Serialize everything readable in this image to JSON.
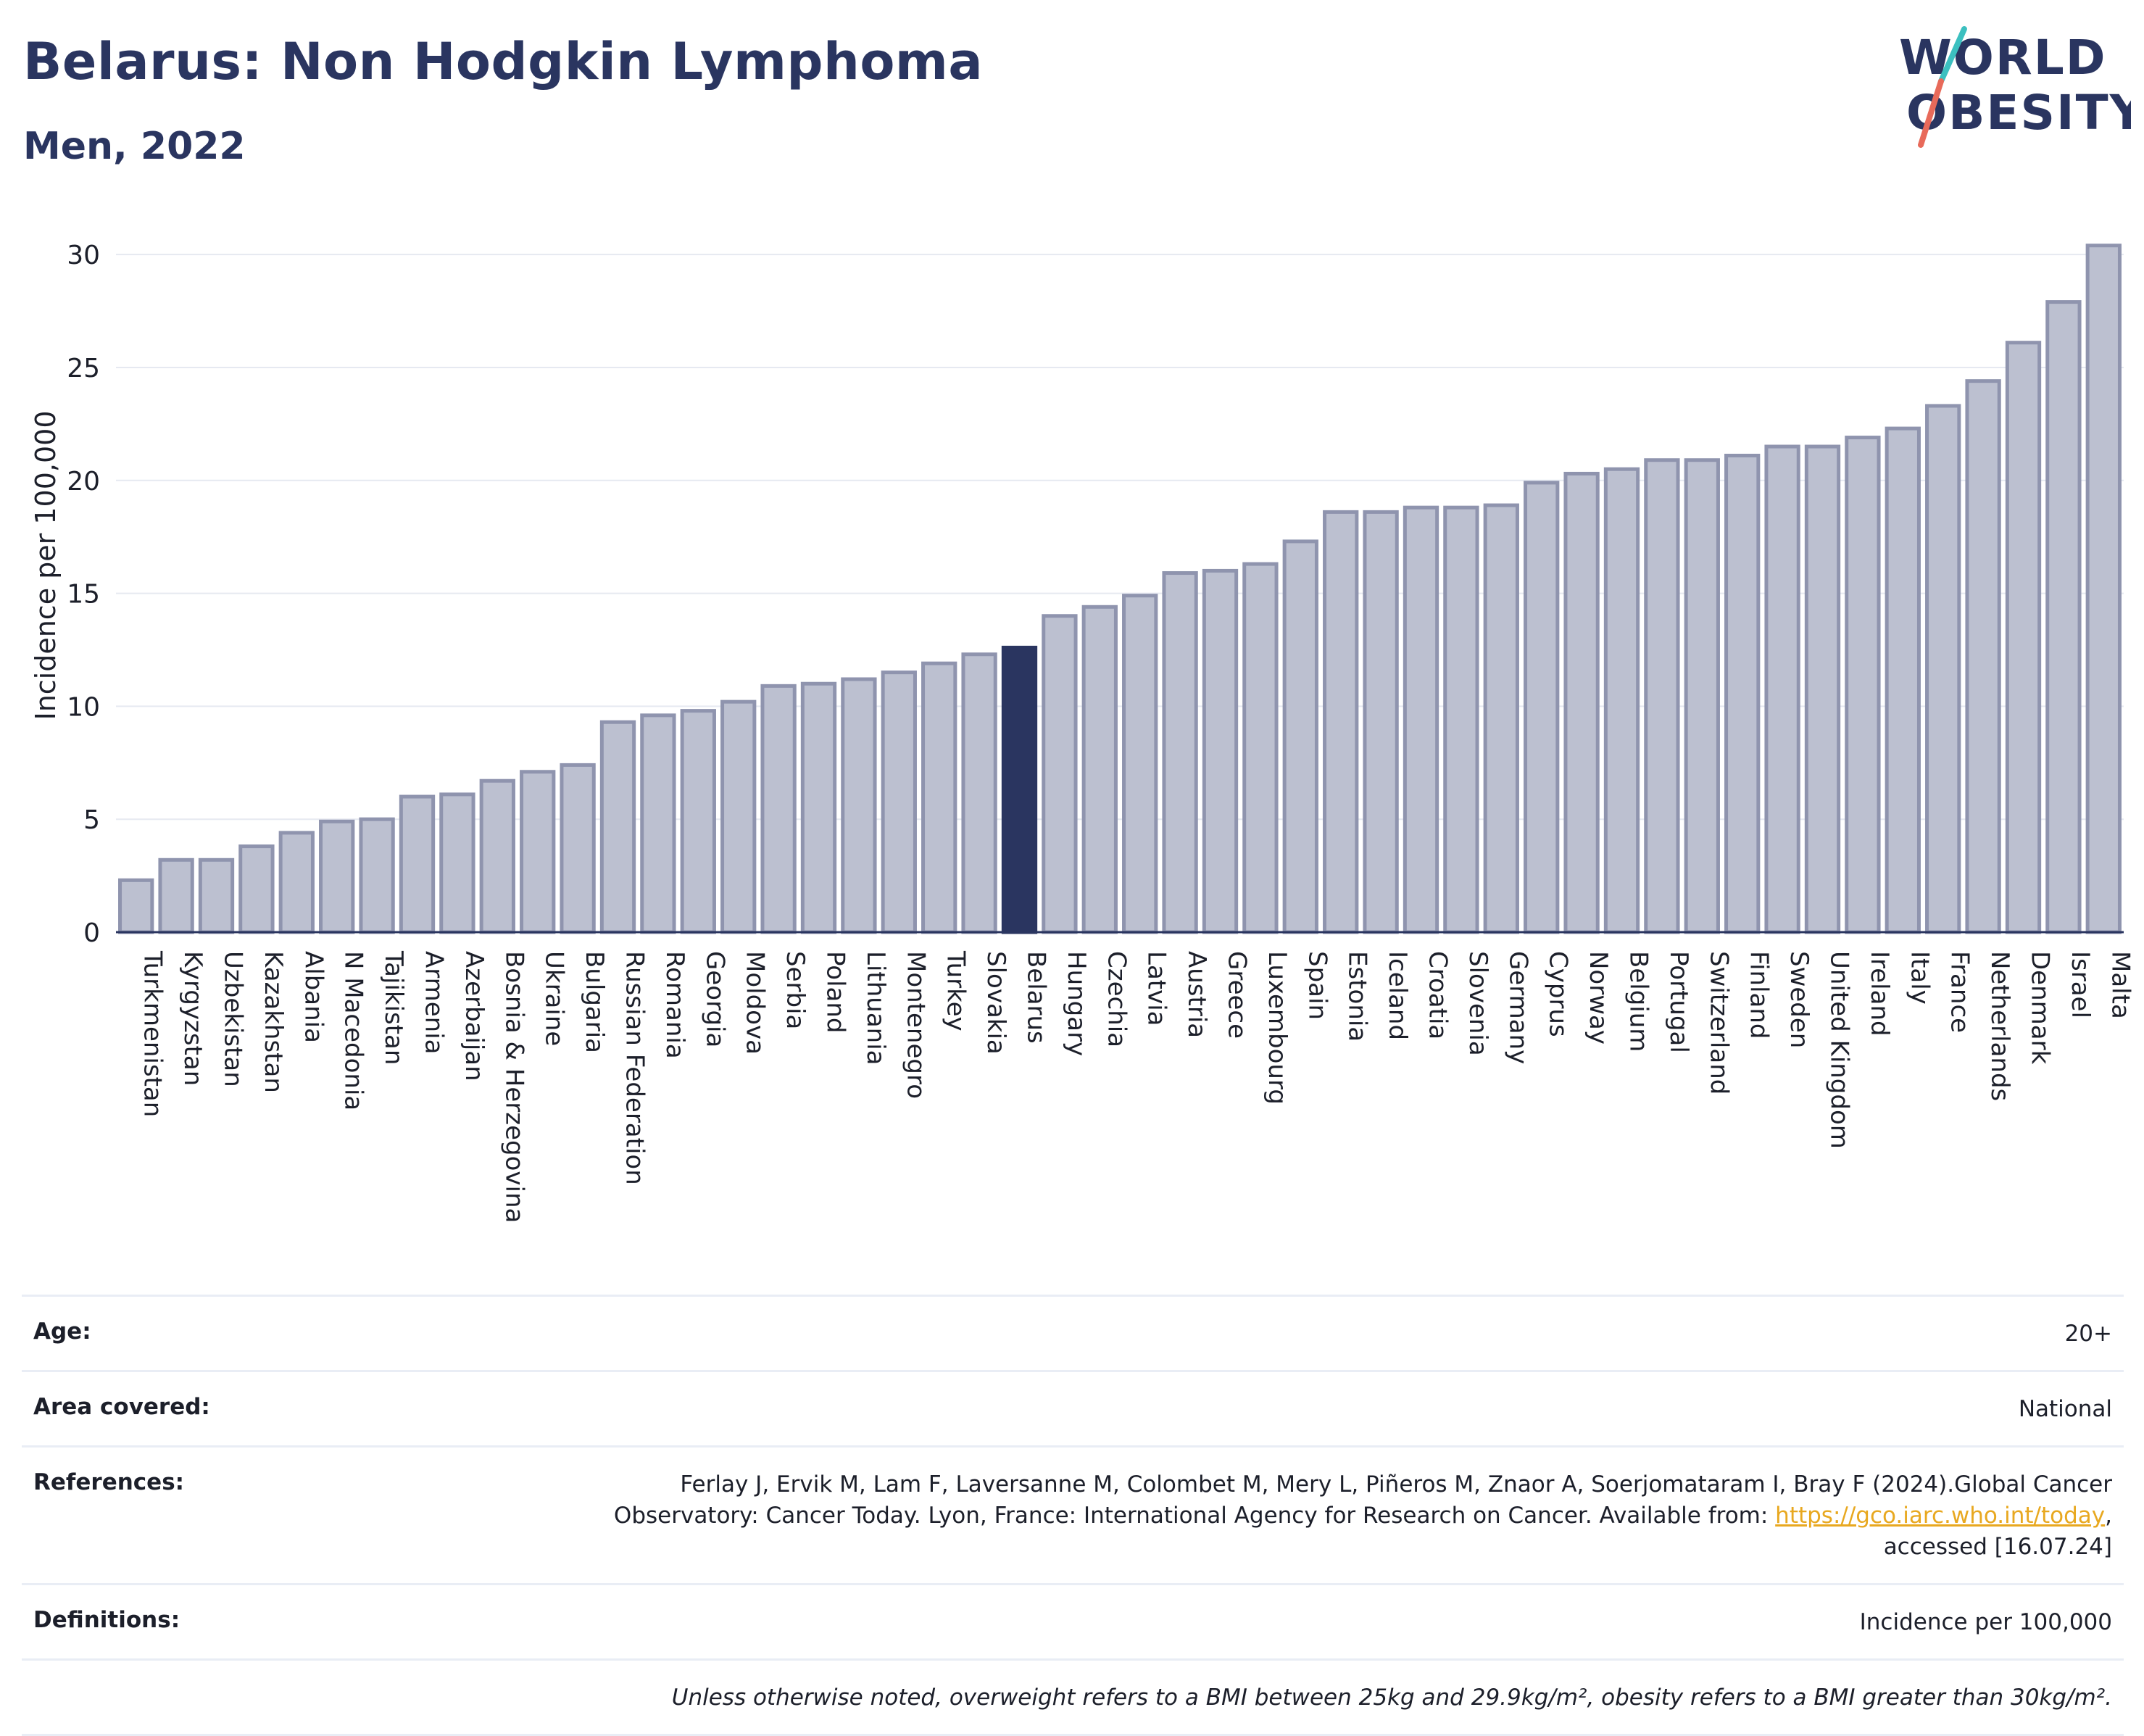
{
  "header": {
    "title": "Belarus: Non Hodgkin Lymphoma",
    "subtitle": "Men, 2022"
  },
  "logo": {
    "line1": "WORLD",
    "line2": "OBESITY"
  },
  "colors": {
    "bar": "#bcc0d0",
    "bar_outline": "#8f94ae",
    "highlight": "#2a3560",
    "grid": "#e6e9f1",
    "link": "#e8a820"
  },
  "chart_data": {
    "type": "bar",
    "ylabel": "Incidence per 100,000",
    "xlabel": "",
    "ylim": [
      0,
      31
    ],
    "yticks": [
      0,
      5,
      10,
      15,
      20,
      25,
      30
    ],
    "grid": true,
    "highlight": "Belarus",
    "categories": [
      "Turkmenistan",
      "Kyrgyzstan",
      "Uzbekistan",
      "Kazakhstan",
      "Albania",
      "N Macedonia",
      "Tajikistan",
      "Armenia",
      "Azerbaijan",
      "Bosnia & Herzegovina",
      "Ukraine",
      "Bulgaria",
      "Russian Federation",
      "Romania",
      "Georgia",
      "Moldova",
      "Serbia",
      "Poland",
      "Lithuania",
      "Montenegro",
      "Turkey",
      "Slovakia",
      "Belarus",
      "Hungary",
      "Czechia",
      "Latvia",
      "Austria",
      "Greece",
      "Luxembourg",
      "Spain",
      "Estonia",
      "Iceland",
      "Croatia",
      "Slovenia",
      "Germany",
      "Cyprus",
      "Norway",
      "Belgium",
      "Portugal",
      "Switzerland",
      "Finland",
      "Sweden",
      "United Kingdom",
      "Ireland",
      "Italy",
      "France",
      "Netherlands",
      "Denmark",
      "Israel",
      "Malta"
    ],
    "values": [
      2.3,
      3.2,
      3.2,
      3.8,
      4.4,
      4.9,
      5.0,
      6.0,
      6.1,
      6.7,
      7.1,
      7.4,
      9.3,
      9.6,
      9.8,
      10.2,
      10.9,
      11.0,
      11.2,
      11.5,
      11.9,
      12.3,
      12.6,
      14.0,
      14.4,
      14.9,
      15.9,
      16.0,
      16.3,
      17.3,
      18.6,
      18.6,
      18.8,
      18.8,
      18.9,
      19.9,
      20.3,
      20.5,
      20.9,
      20.9,
      21.1,
      21.5,
      21.5,
      21.9,
      22.3,
      23.3,
      24.4,
      26.1,
      27.9,
      30.4
    ]
  },
  "info": {
    "age_label": "Age:",
    "age_value": "20+",
    "area_label": "Area covered:",
    "area_value": "National",
    "references_label": "References:",
    "references_line1": "Ferlay J, Ervik M, Lam F, Laversanne M, Colombet M, Mery L, Piñeros M, Znaor A, Soerjomataram I, Bray F (2024).Global Cancer",
    "references_line2": "Observatory: Cancer Today. Lyon, France: International Agency for Research on Cancer. Available from: ",
    "references_link": "https://gco.iarc.who.int/today",
    "references_line2_end": ",",
    "references_line3": "accessed [16.07.24]",
    "definitions_label": "Definitions:",
    "definitions_value": "Incidence per 100,000",
    "note": "Unless otherwise noted, overweight refers to a BMI between 25kg and 29.9kg/m², obesity refers to a BMI greater than 30kg/m²."
  }
}
